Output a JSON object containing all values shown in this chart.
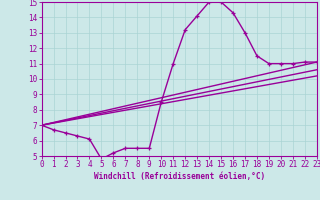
{
  "xlabel": "Windchill (Refroidissement éolien,°C)",
  "xlim": [
    0,
    23
  ],
  "ylim": [
    5,
    15
  ],
  "xticks": [
    0,
    1,
    2,
    3,
    4,
    5,
    6,
    7,
    8,
    9,
    10,
    11,
    12,
    13,
    14,
    15,
    16,
    17,
    18,
    19,
    20,
    21,
    22,
    23
  ],
  "yticks": [
    5,
    6,
    7,
    8,
    9,
    10,
    11,
    12,
    13,
    14,
    15
  ],
  "bg_color": "#cce8e8",
  "line_color": "#990099",
  "grid_color": "#aad4d4",
  "curve_x": [
    0,
    1,
    2,
    3,
    4,
    5,
    6,
    7,
    8,
    9,
    10,
    11,
    12,
    13,
    14,
    15,
    16,
    17,
    18,
    19,
    20,
    21,
    22,
    23
  ],
  "curve_y": [
    7.0,
    6.7,
    6.5,
    6.3,
    6.1,
    4.8,
    5.2,
    5.5,
    5.5,
    5.5,
    8.5,
    11.0,
    13.2,
    14.1,
    15.0,
    15.0,
    14.3,
    13.0,
    11.5,
    11.0,
    11.0,
    11.0,
    11.1,
    11.1
  ],
  "line1_x": [
    0,
    23
  ],
  "line1_y": [
    7.0,
    11.1
  ],
  "line2_x": [
    0,
    23
  ],
  "line2_y": [
    7.0,
    10.6
  ],
  "line3_x": [
    0,
    23
  ],
  "line3_y": [
    7.0,
    10.2
  ]
}
